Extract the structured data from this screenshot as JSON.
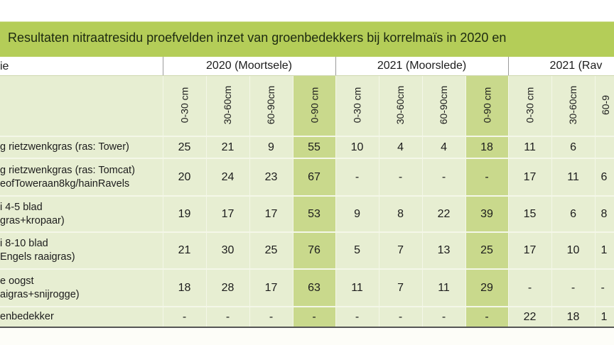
{
  "title": "Resultaten nitraatresidu proefvelden inzet van groenbedekkers bij korrelmaïs in 2020 en",
  "header": {
    "first_col": "ie",
    "groups": [
      "2020 (Moortsele)",
      "2021 (Moorslede)",
      "2021 (Rav"
    ]
  },
  "subheaders": [
    "0-30 cm",
    "30-60cm",
    "60-90cm",
    "0-90 cm",
    "0-30 cm",
    "30-60cm",
    "60-90cm",
    "0-90 cm",
    "0-30 cm",
    "30-60cm",
    "60-9"
  ],
  "rows": [
    {
      "label": [
        "g rietzwenkgras (ras: Tower)"
      ],
      "values": [
        "25",
        "21",
        "9",
        "55",
        "10",
        "4",
        "4",
        "18",
        "11",
        "6",
        ""
      ]
    },
    {
      "label": [
        "g rietzwenkgras (ras: Tomcat)",
        "eofToweraan8kg/hainRavels"
      ],
      "values": [
        "20",
        "24",
        "23",
        "67",
        "-",
        "-",
        "-",
        "-",
        "17",
        "11",
        "6"
      ]
    },
    {
      "label": [
        "i 4-5 blad",
        "gras+kropaar)"
      ],
      "values": [
        "19",
        "17",
        "17",
        "53",
        "9",
        "8",
        "22",
        "39",
        "15",
        "6",
        "8"
      ]
    },
    {
      "label": [
        "i 8-10 blad",
        "Engels raaigras)"
      ],
      "values": [
        "21",
        "30",
        "25",
        "76",
        "5",
        "7",
        "13",
        "25",
        "17",
        "10",
        "1"
      ]
    },
    {
      "label": [
        "e oogst",
        "aigras+snijrogge)"
      ],
      "values": [
        "18",
        "28",
        "17",
        "63",
        "11",
        "7",
        "11",
        "29",
        "-",
        "-",
        "-"
      ]
    },
    {
      "label": [
        "enbedekker"
      ],
      "values": [
        "-",
        "-",
        "-",
        "-",
        "-",
        "-",
        "-",
        "-",
        "22",
        "18",
        "1"
      ]
    }
  ],
  "colors": {
    "title_bar": "#b4cd58",
    "cell": "#e7eed2",
    "total_column": "#c9d98c"
  }
}
